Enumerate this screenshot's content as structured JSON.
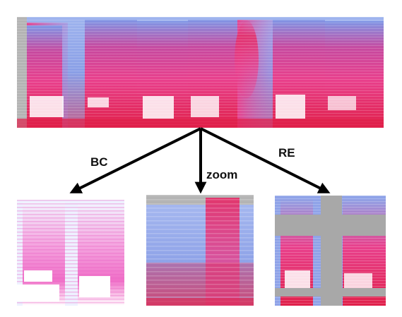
{
  "figure": {
    "source_panel": {
      "name": "original-spectrogram"
    },
    "arrows": [
      {
        "id": "bc",
        "label": "BC",
        "target": "brightness-contrast-spectrogram"
      },
      {
        "id": "zoom",
        "label": "zoom",
        "target": "zoomed-spectrogram"
      },
      {
        "id": "re",
        "label": "RE",
        "target": "random-erasing-spectrogram"
      }
    ],
    "colors": {
      "background_blue": "#8fa3e8",
      "low_blue": "#6f95e6",
      "mid_magenta": "#e8408c",
      "high_red": "#e0204a",
      "peak_white": "#ffffff",
      "gray_padding": "#b4b4b4",
      "erase_gray": "#a8a8a8",
      "arrow": "#000000"
    }
  }
}
